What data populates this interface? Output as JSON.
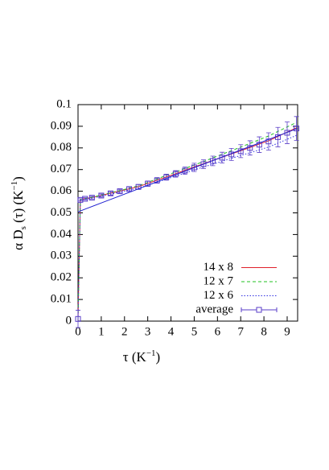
{
  "chart_data": {
    "type": "line",
    "x_label": {
      "main": "τ (K",
      "sup": "−1",
      "end": ")"
    },
    "y_label": {
      "main": "α D",
      "sub": "s",
      "mid": " (τ) (K",
      "sup": "−1",
      "end": ")"
    },
    "x": [
      0,
      0.1,
      0.3,
      0.6,
      1.0,
      1.4,
      1.8,
      2.2,
      2.6,
      3.0,
      3.4,
      3.8,
      4.2,
      4.6,
      5.0,
      5.4,
      5.8,
      6.2,
      6.6,
      7.0,
      7.4,
      7.8,
      8.2,
      8.6,
      9.0,
      9.4
    ],
    "series": [
      {
        "name": "14 x 8",
        "color": "#e0202a",
        "dash": "solid",
        "values": [
          0.001,
          0.0562,
          0.0566,
          0.0571,
          0.0581,
          0.0591,
          0.0601,
          0.0611,
          0.0621,
          0.0636,
          0.0651,
          0.0666,
          0.0681,
          0.0697,
          0.0712,
          0.0727,
          0.0742,
          0.0757,
          0.0772,
          0.0787,
          0.0802,
          0.0818,
          0.0833,
          0.0853,
          0.0873,
          0.0893
        ]
      },
      {
        "name": "12 x 7",
        "color": "#20c020",
        "dash": "dashed",
        "values": [
          0.001,
          0.0561,
          0.0566,
          0.0572,
          0.0582,
          0.0593,
          0.0603,
          0.0614,
          0.0625,
          0.0641,
          0.0657,
          0.0673,
          0.0689,
          0.0705,
          0.0721,
          0.0737,
          0.0754,
          0.0771,
          0.0787,
          0.0804,
          0.0821,
          0.0838,
          0.0855,
          0.0876,
          0.0897,
          0.0918
        ]
      },
      {
        "name": "12 x 6",
        "color": "#3030e0",
        "dash": "dotted",
        "values": [
          0.001,
          0.0558,
          0.0563,
          0.0567,
          0.0577,
          0.0586,
          0.0596,
          0.0605,
          0.0614,
          0.0628,
          0.0642,
          0.0656,
          0.067,
          0.0684,
          0.0698,
          0.0712,
          0.0725,
          0.0738,
          0.0752,
          0.0765,
          0.0778,
          0.0791,
          0.0804,
          0.0822,
          0.084,
          0.0858
        ]
      },
      {
        "name": "average",
        "color": "#5a3ec8",
        "dash": "points",
        "values": [
          0.001,
          0.056,
          0.0565,
          0.057,
          0.058,
          0.059,
          0.06,
          0.061,
          0.062,
          0.0635,
          0.065,
          0.0665,
          0.068,
          0.0695,
          0.071,
          0.0725,
          0.074,
          0.0755,
          0.077,
          0.0785,
          0.08,
          0.0815,
          0.083,
          0.085,
          0.087,
          0.089
        ],
        "errors": [
          0.004,
          0.0005,
          0.0005,
          0.0006,
          0.0007,
          0.0008,
          0.0009,
          0.001,
          0.0011,
          0.0012,
          0.0013,
          0.0014,
          0.0015,
          0.0017,
          0.0019,
          0.002,
          0.0022,
          0.0025,
          0.0028,
          0.003,
          0.0033,
          0.0036,
          0.004,
          0.0045,
          0.005,
          0.0055
        ]
      }
    ],
    "fit": {
      "x": [
        0,
        9.45
      ],
      "values": [
        0.0505,
        0.089
      ],
      "color": "#1f1fd0"
    },
    "xlim": [
      0,
      9.45
    ],
    "ylim": [
      0,
      0.1
    ],
    "xticks": [
      0,
      1,
      2,
      3,
      4,
      5,
      6,
      7,
      8,
      9
    ],
    "yticks": [
      0,
      0.01,
      0.02,
      0.03,
      0.04,
      0.05,
      0.06,
      0.07,
      0.08,
      0.09,
      0.1
    ],
    "legend": "bottom-right"
  }
}
